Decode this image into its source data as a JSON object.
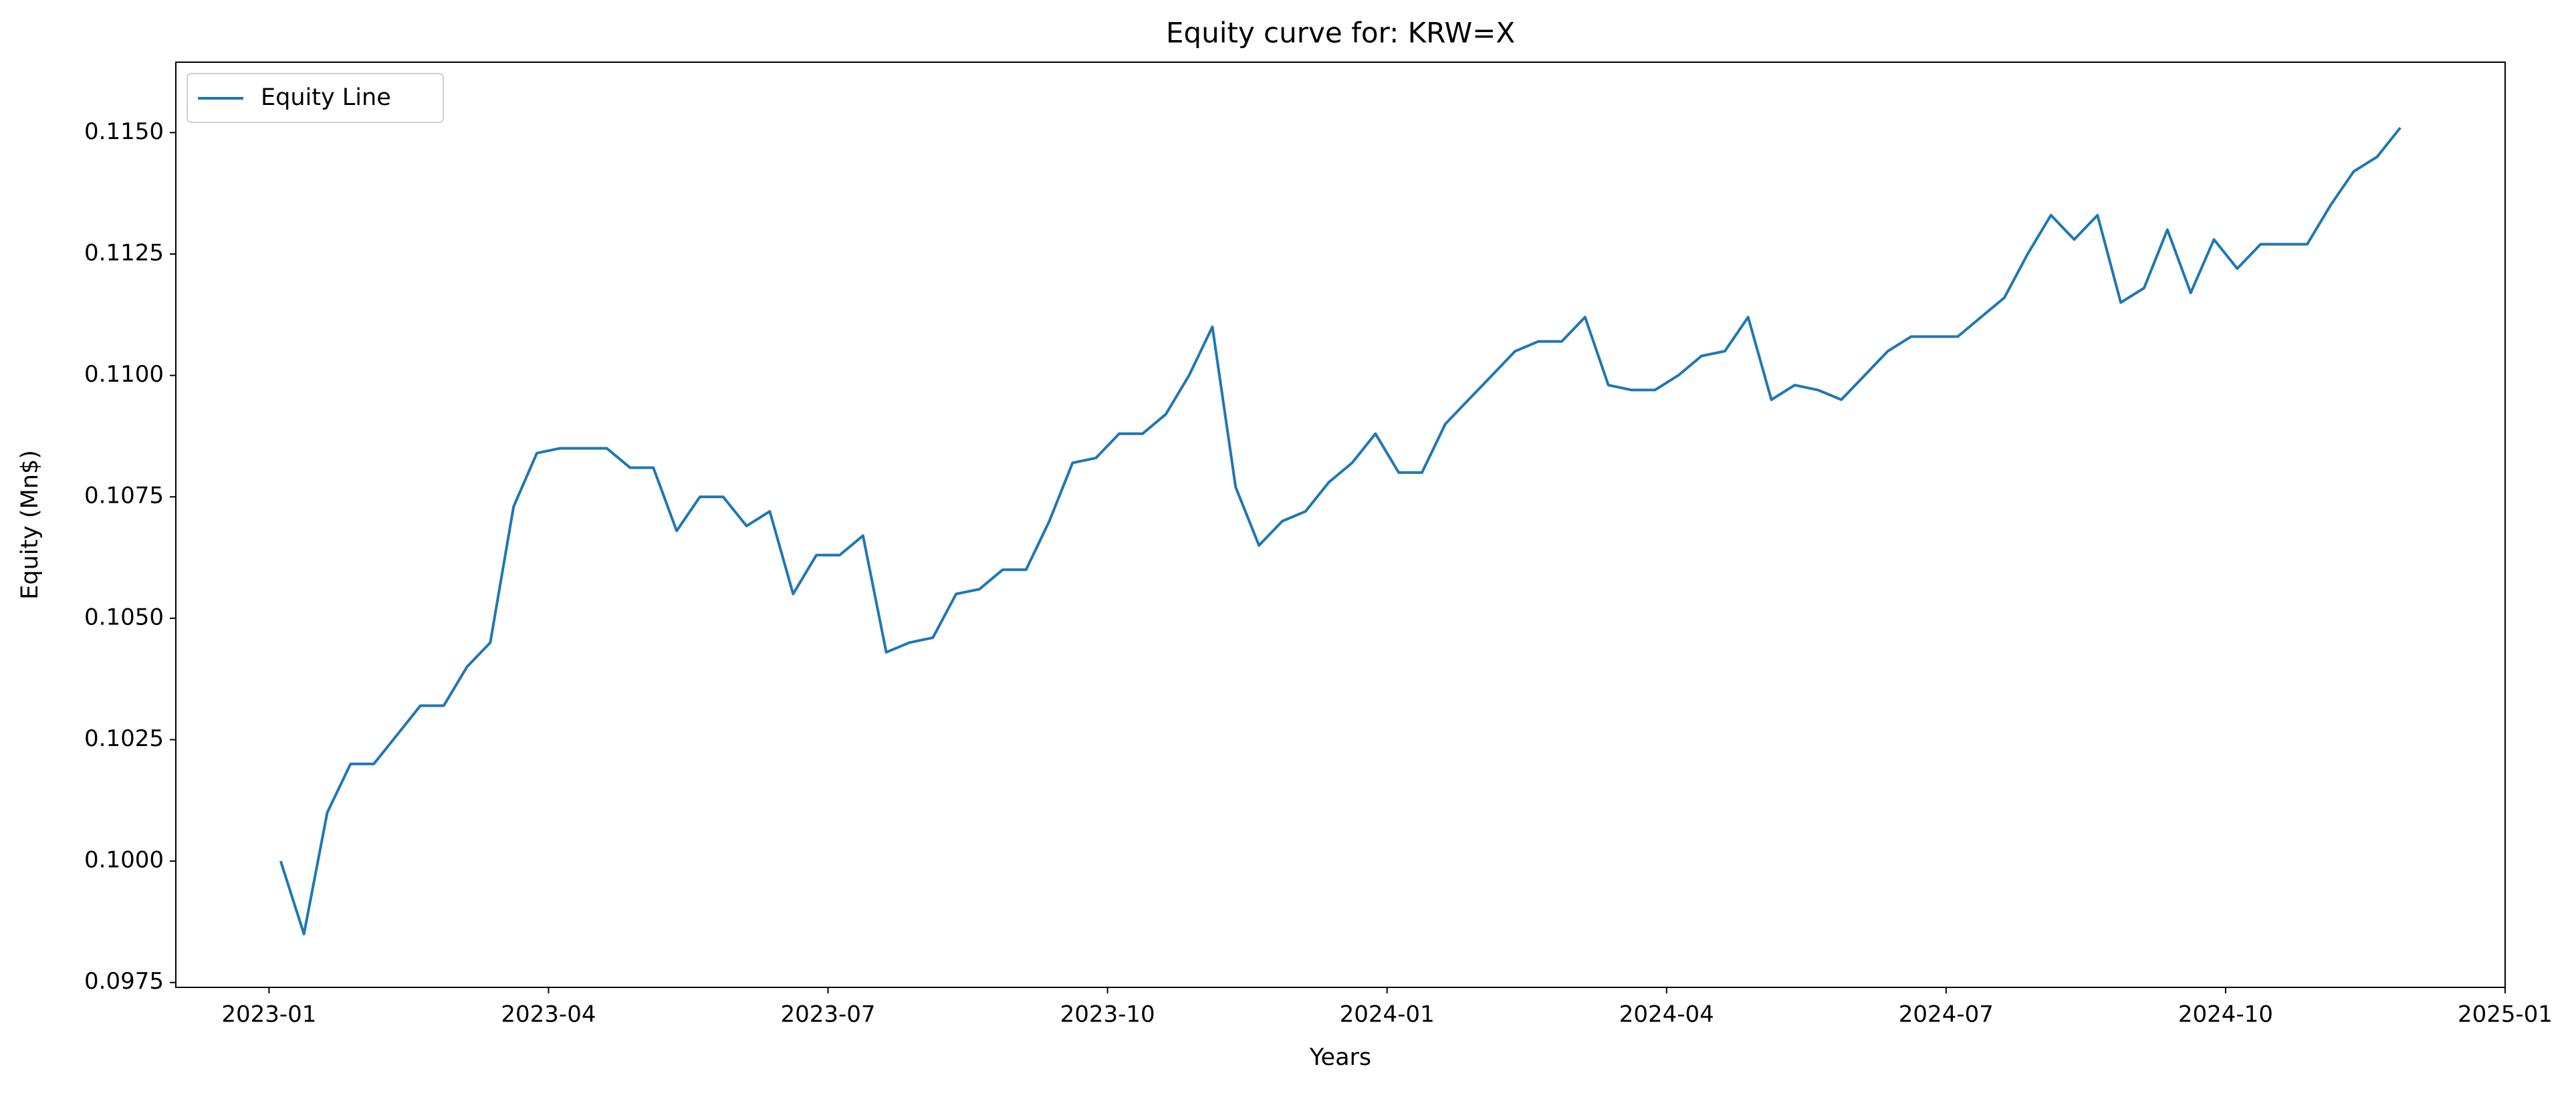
{
  "chart_data": {
    "type": "line",
    "title": "Equity curve for: KRW=X",
    "x_label": "Years",
    "y_label": "Equity (Mn$)",
    "x": [
      "2023-01",
      "2023-01",
      "2023-01",
      "2023-01",
      "2023-02",
      "2023-02",
      "2023-02",
      "2023-02",
      "2023-03",
      "2023-03",
      "2023-03",
      "2023-03",
      "2023-04",
      "2023-04",
      "2023-04",
      "2023-04",
      "2023-05",
      "2023-05",
      "2023-05",
      "2023-05",
      "2023-06",
      "2023-06",
      "2023-06",
      "2023-06",
      "2023-07",
      "2023-07",
      "2023-07",
      "2023-07",
      "2023-08",
      "2023-08",
      "2023-08",
      "2023-08",
      "2023-09",
      "2023-09",
      "2023-09",
      "2023-09",
      "2023-10",
      "2023-10",
      "2023-10",
      "2023-10",
      "2023-11",
      "2023-11",
      "2023-11",
      "2023-11",
      "2023-12",
      "2023-12",
      "2023-12",
      "2023-12",
      "2024-01",
      "2024-01",
      "2024-01",
      "2024-01",
      "2024-02",
      "2024-02",
      "2024-02",
      "2024-02",
      "2024-03",
      "2024-03",
      "2024-03",
      "2024-03",
      "2024-04",
      "2024-04",
      "2024-04",
      "2024-04",
      "2024-05",
      "2024-05",
      "2024-05",
      "2024-05",
      "2024-06",
      "2024-06",
      "2024-06",
      "2024-06",
      "2024-07",
      "2024-07",
      "2024-07",
      "2024-07",
      "2024-08",
      "2024-08",
      "2024-08",
      "2024-08",
      "2024-09",
      "2024-09",
      "2024-09",
      "2024-09",
      "2024-10",
      "2024-10",
      "2024-10",
      "2024-10",
      "2024-11",
      "2024-11",
      "2024-11",
      "2024-11"
    ],
    "series": [
      {
        "name": "Equity Line",
        "color": "#1f77b4",
        "values": [
          0.1,
          0.0985,
          0.101,
          0.102,
          0.102,
          0.1026,
          0.1032,
          0.1032,
          0.104,
          0.1045,
          0.1073,
          0.1084,
          0.1085,
          0.1085,
          0.1085,
          0.1081,
          0.1081,
          0.1068,
          0.1075,
          0.1075,
          0.1069,
          0.1072,
          0.1055,
          0.1063,
          0.1063,
          0.1067,
          0.1043,
          0.1045,
          0.1046,
          0.1055,
          0.1056,
          0.106,
          0.106,
          0.107,
          0.1082,
          0.1083,
          0.1088,
          0.1088,
          0.1092,
          0.11,
          0.111,
          0.1077,
          0.1065,
          0.107,
          0.1072,
          0.1078,
          0.1082,
          0.1088,
          0.108,
          0.108,
          0.109,
          0.1095,
          0.11,
          0.1105,
          0.1107,
          0.1107,
          0.1112,
          0.1098,
          0.1097,
          0.1097,
          0.11,
          0.1104,
          0.1105,
          0.1112,
          0.1095,
          0.1098,
          0.1097,
          0.1095,
          0.11,
          0.1105,
          0.1108,
          0.1108,
          0.1108,
          0.1112,
          0.1116,
          0.1125,
          0.1133,
          0.1128,
          0.1133,
          0.1115,
          0.1118,
          0.113,
          0.1117,
          0.1128,
          0.1122,
          0.1127,
          0.1127,
          0.1127,
          0.1135,
          0.1142,
          0.1145,
          0.1151
        ]
      }
    ],
    "xlim": [
      "2022-12",
      "2025-01"
    ],
    "xticks": [
      "2023-01",
      "2023-04",
      "2023-07",
      "2023-10",
      "2024-01",
      "2024-04",
      "2024-07",
      "2024-10",
      "2025-01"
    ],
    "ylim": [
      0.0974,
      0.11645
    ],
    "yticks": [
      0.0975,
      {
        "value": 0.1,
        "label": "0.1000"
      },
      0.1025,
      {
        "value": 0.105,
        "label": "0.1050"
      },
      0.1075,
      {
        "value": 0.11,
        "label": "0.1100"
      },
      0.1125,
      {
        "value": 0.115,
        "label": "0.1150"
      }
    ],
    "grid": false,
    "legend": "upper left"
  }
}
